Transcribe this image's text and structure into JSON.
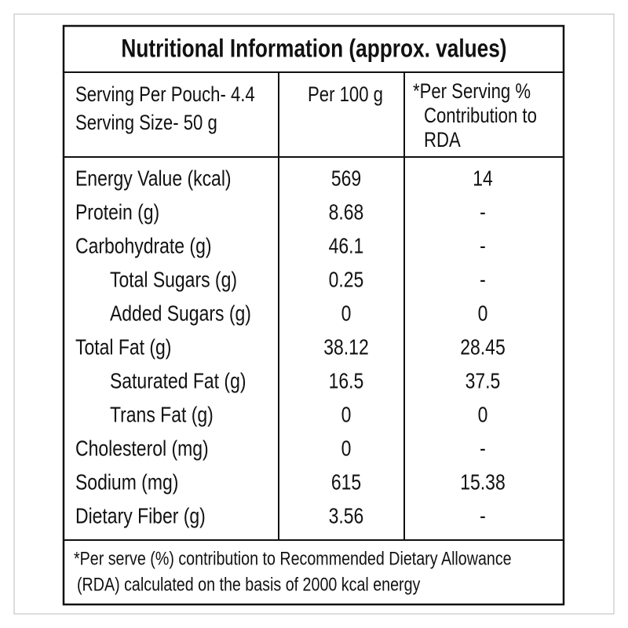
{
  "title": "Nutritional Information (approx. values)",
  "header": {
    "serving": [
      "Serving Per Pouch- 4.4",
      "Serving Size- 50 g"
    ],
    "per_100g": "Per 100 g",
    "rda": [
      "*Per Serving %",
      "Contribution to",
      "RDA"
    ]
  },
  "rows": [
    {
      "label": "Energy Value (kcal)",
      "per_100g": "569",
      "rda": "14"
    },
    {
      "label": "Protein (g)",
      "per_100g": "8.68",
      "rda": "-"
    },
    {
      "label": "Carbohydrate (g)",
      "per_100g": "46.1",
      "rda": "-"
    },
    {
      "label": "Total Sugars (g)",
      "per_100g": "0.25",
      "rda": "-",
      "sub": true
    },
    {
      "label": "Added Sugars (g)",
      "per_100g": "0",
      "rda": "0",
      "sub": true
    },
    {
      "label": "Total Fat (g)",
      "per_100g": "38.12",
      "rda": "28.45"
    },
    {
      "label": "Saturated Fat (g)",
      "per_100g": "16.5",
      "rda": "37.5",
      "sub": true
    },
    {
      "label": "Trans Fat (g)",
      "per_100g": "0",
      "rda": "0",
      "sub": true
    },
    {
      "label": "Cholesterol (mg)",
      "per_100g": "0",
      "rda": "-"
    },
    {
      "label": "Sodium (mg)",
      "per_100g": "615",
      "rda": "15.38"
    },
    {
      "label": "Dietary Fiber (g)",
      "per_100g": "3.56",
      "rda": "-"
    }
  ],
  "footnote": [
    "*Per serve (%) contribution to Recommended Dietary Allowance",
    "(RDA) calculated on the basis of 2000 kcal energy"
  ]
}
